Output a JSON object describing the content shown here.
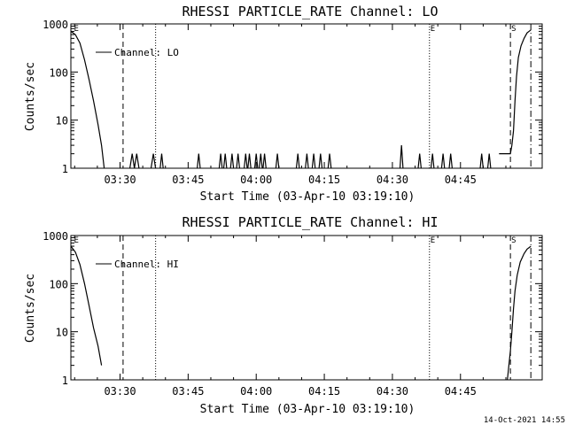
{
  "colors": {
    "background": "#ffffff",
    "foreground": "#000000"
  },
  "footer": {
    "timestamp": "14-Oct-2021 14:55"
  },
  "chart_data": [
    {
      "type": "line",
      "title": "RHESSI PARTICLE_RATE Channel: LO",
      "xlabel": "Start Time (03-Apr-10 03:19:10)",
      "ylabel": "Counts/sec",
      "yscale": "log",
      "ylim": [
        1,
        1000
      ],
      "xlim": [
        "03:19:10",
        "05:03:00"
      ],
      "x_ticks": [
        "03:30",
        "03:45",
        "04:00",
        "04:15",
        "04:30",
        "04:45"
      ],
      "y_ticks": [
        "1",
        "10",
        "100",
        "1000"
      ],
      "legend": {
        "entries": [
          "Channel: LO"
        ],
        "placement": "top-left"
      },
      "markers": [
        {
          "label": "E",
          "time": "03:19:40",
          "style": "none"
        },
        {
          "label": "",
          "time": "03:30:40",
          "style": "dashed"
        },
        {
          "label": "",
          "time": "03:37:50",
          "style": "dotted"
        },
        {
          "label": "E",
          "time": "04:38:10",
          "style": "dotted"
        },
        {
          "label": "S",
          "time": "04:56:00",
          "style": "dashed"
        },
        {
          "label": "",
          "time": "05:00:30",
          "style": "dashdot"
        }
      ],
      "series": [
        {
          "name": "Channel: LO",
          "segments": [
            [
              [
                "03:19:10",
                700
              ],
              [
                "03:20:10",
                600
              ],
              [
                "03:21:10",
                400
              ],
              [
                "03:22:10",
                180
              ],
              [
                "03:23:10",
                70
              ],
              [
                "03:24:10",
                25
              ],
              [
                "03:25:10",
                8
              ],
              [
                "03:25:55",
                3
              ],
              [
                "03:26:30",
                1
              ]
            ],
            [
              [
                "03:32:10",
                1
              ],
              [
                "03:32:40",
                2
              ],
              [
                "03:33:10",
                1
              ],
              [
                "03:33:40",
                2
              ],
              [
                "03:34:10",
                1
              ]
            ],
            [
              [
                "03:36:50",
                1
              ],
              [
                "03:37:20",
                2
              ],
              [
                "03:37:50",
                1
              ]
            ],
            [
              [
                "03:38:50",
                1
              ],
              [
                "03:39:10",
                2
              ],
              [
                "03:39:30",
                1
              ]
            ],
            [
              [
                "03:47:00",
                1
              ],
              [
                "03:47:20",
                2
              ],
              [
                "03:47:40",
                1
              ]
            ],
            [
              [
                "03:51:50",
                1
              ],
              [
                "03:52:10",
                2
              ],
              [
                "03:52:30",
                1
              ]
            ],
            [
              [
                "03:52:50",
                1
              ],
              [
                "03:53:10",
                2
              ],
              [
                "03:53:30",
                1
              ]
            ],
            [
              [
                "03:54:20",
                1
              ],
              [
                "03:54:40",
                2
              ],
              [
                "03:55:00",
                1
              ]
            ],
            [
              [
                "03:55:40",
                1
              ],
              [
                "03:56:00",
                2
              ],
              [
                "03:56:20",
                1
              ]
            ],
            [
              [
                "03:57:20",
                1
              ],
              [
                "03:57:40",
                2
              ],
              [
                "03:58:00",
                1
              ]
            ],
            [
              [
                "03:58:10",
                1
              ],
              [
                "03:58:30",
                2
              ],
              [
                "03:58:50",
                1
              ]
            ],
            [
              [
                "03:59:40",
                1
              ],
              [
                "04:00:00",
                2
              ],
              [
                "04:00:20",
                1
              ]
            ],
            [
              [
                "04:00:40",
                1
              ],
              [
                "04:01:00",
                2
              ],
              [
                "04:01:20",
                1
              ]
            ],
            [
              [
                "04:01:30",
                1
              ],
              [
                "04:01:50",
                2
              ],
              [
                "04:02:10",
                1
              ]
            ],
            [
              [
                "04:04:20",
                1
              ],
              [
                "04:04:40",
                2
              ],
              [
                "04:05:00",
                1
              ]
            ],
            [
              [
                "04:08:50",
                1
              ],
              [
                "04:09:10",
                2
              ],
              [
                "04:09:30",
                1
              ]
            ],
            [
              [
                "04:10:50",
                1
              ],
              [
                "04:11:10",
                2
              ],
              [
                "04:11:30",
                1
              ]
            ],
            [
              [
                "04:12:20",
                1
              ],
              [
                "04:12:40",
                2
              ],
              [
                "04:13:00",
                1
              ]
            ],
            [
              [
                "04:13:50",
                1
              ],
              [
                "04:14:10",
                2
              ],
              [
                "04:14:30",
                1
              ]
            ],
            [
              [
                "04:15:50",
                1
              ],
              [
                "04:16:10",
                2
              ],
              [
                "04:16:30",
                1
              ]
            ],
            [
              [
                "04:31:40",
                1
              ],
              [
                "04:32:00",
                3
              ],
              [
                "04:32:20",
                1
              ]
            ],
            [
              [
                "04:35:40",
                1
              ],
              [
                "04:36:00",
                2
              ],
              [
                "04:36:20",
                1
              ]
            ],
            [
              [
                "04:38:30",
                1
              ],
              [
                "04:38:50",
                2
              ],
              [
                "04:39:10",
                1
              ]
            ],
            [
              [
                "04:40:50",
                1
              ],
              [
                "04:41:10",
                2
              ],
              [
                "04:41:30",
                1
              ]
            ],
            [
              [
                "04:42:30",
                1
              ],
              [
                "04:42:50",
                2
              ],
              [
                "04:43:10",
                1
              ]
            ],
            [
              [
                "04:49:20",
                1
              ],
              [
                "04:49:40",
                2
              ],
              [
                "04:50:00",
                1
              ]
            ],
            [
              [
                "04:51:00",
                1
              ],
              [
                "04:51:20",
                2
              ],
              [
                "04:51:40",
                1
              ]
            ],
            [
              [
                "04:53:30",
                2
              ],
              [
                "04:56:00",
                2
              ],
              [
                "04:56:20",
                3
              ],
              [
                "04:56:40",
                6
              ],
              [
                "04:57:00",
                25
              ],
              [
                "04:57:20",
                80
              ],
              [
                "04:57:45",
                200
              ],
              [
                "04:58:20",
                350
              ],
              [
                "04:59:00",
                500
              ],
              [
                "04:59:40",
                650
              ],
              [
                "05:00:30",
                750
              ]
            ]
          ]
        }
      ]
    },
    {
      "type": "line",
      "title": "RHESSI PARTICLE_RATE Channel: HI",
      "xlabel": "Start Time (03-Apr-10 03:19:10)",
      "ylabel": "Counts/sec",
      "yscale": "log",
      "ylim": [
        1,
        1000
      ],
      "xlim": [
        "03:19:10",
        "05:03:00"
      ],
      "x_ticks": [
        "03:30",
        "03:45",
        "04:00",
        "04:15",
        "04:30",
        "04:45"
      ],
      "y_ticks": [
        "1",
        "10",
        "100",
        "1000"
      ],
      "legend": {
        "entries": [
          "Channel: HI"
        ],
        "placement": "top-left"
      },
      "markers": [
        {
          "label": "E",
          "time": "03:19:40",
          "style": "none"
        },
        {
          "label": "",
          "time": "03:30:40",
          "style": "dashed"
        },
        {
          "label": "",
          "time": "03:37:50",
          "style": "dotted"
        },
        {
          "label": "E",
          "time": "04:38:10",
          "style": "dotted"
        },
        {
          "label": "S",
          "time": "04:56:00",
          "style": "dashed"
        },
        {
          "label": "",
          "time": "05:00:30",
          "style": "dashdot"
        }
      ],
      "series": [
        {
          "name": "Channel: HI",
          "segments": [
            [
              [
                "03:19:10",
                600
              ],
              [
                "03:20:10",
                450
              ],
              [
                "03:21:10",
                250
              ],
              [
                "03:22:10",
                100
              ],
              [
                "03:23:10",
                35
              ],
              [
                "03:24:10",
                12
              ],
              [
                "03:25:10",
                5
              ],
              [
                "03:25:55",
                2
              ]
            ],
            [
              [
                "04:55:20",
                1
              ],
              [
                "04:55:40",
                2
              ],
              [
                "04:56:00",
                4
              ],
              [
                "04:56:20",
                10
              ],
              [
                "04:56:40",
                30
              ],
              [
                "04:57:00",
                70
              ],
              [
                "04:57:30",
                150
              ],
              [
                "04:58:10",
                280
              ],
              [
                "04:59:00",
                420
              ],
              [
                "04:59:40",
                520
              ],
              [
                "05:00:30",
                600
              ]
            ]
          ]
        }
      ]
    }
  ]
}
